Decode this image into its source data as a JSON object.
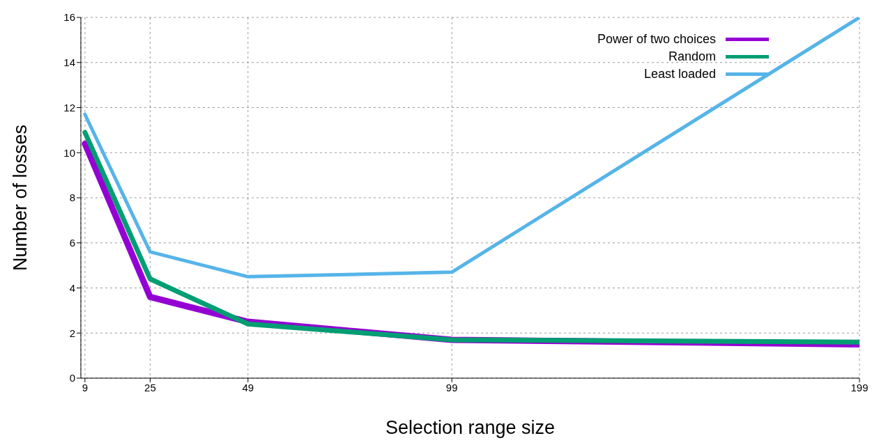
{
  "chart_data": {
    "type": "line",
    "xlabel": "Selection range size",
    "ylabel": "Number of losses",
    "x": [
      9,
      25,
      49,
      99,
      199
    ],
    "series": [
      {
        "name": "Power of two choices",
        "color": "#9400d3",
        "values": [
          10.4,
          3.6,
          2.5,
          1.7,
          1.5
        ]
      },
      {
        "name": "Random",
        "color": "#009e73",
        "values": [
          10.9,
          4.4,
          2.4,
          1.7,
          1.6
        ]
      },
      {
        "name": "Least loaded",
        "color": "#56b4e9",
        "values": [
          11.7,
          5.6,
          4.5,
          4.7,
          16
        ]
      }
    ],
    "xlim": [
      8,
      199
    ],
    "xticks": [
      9,
      25,
      49,
      99,
      199
    ],
    "ylim": [
      0,
      16
    ],
    "yticks": [
      0,
      2,
      4,
      6,
      8,
      10,
      12,
      14,
      16
    ],
    "grid": true,
    "legend": "top right",
    "marker": "none",
    "line_style": "solid"
  }
}
